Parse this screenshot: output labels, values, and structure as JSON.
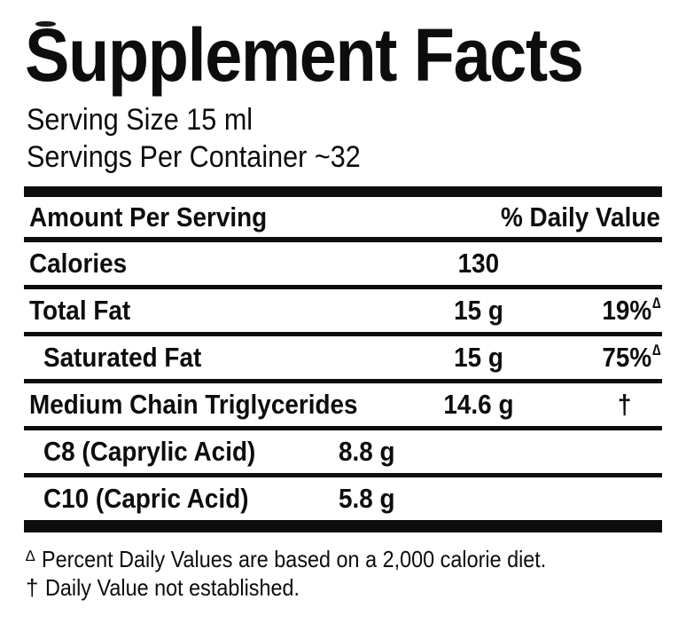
{
  "label": {
    "title": "Supplement Facts",
    "serving_size": "Serving Size 15 ml",
    "servings_per_container": "Servings Per Container ~32",
    "header": {
      "amount": "Amount Per Serving",
      "daily_value": "% Daily Value"
    },
    "rows": [
      {
        "name": "Calories",
        "amount": "130"
      },
      {
        "name": "Total Fat",
        "amount": "15 g",
        "dv": "19%",
        "dv_mark": "∆"
      },
      {
        "name": "Saturated Fat",
        "amount": "15 g",
        "dv": "75%",
        "dv_mark": "∆"
      },
      {
        "name": "Medium Chain Triglycerides",
        "amount": "14.6 g",
        "dv": "†"
      },
      {
        "name": "C8 (Caprylic Acid)",
        "amount": "8.8 g"
      },
      {
        "name": "C10 (Capric Acid)",
        "amount": "5.8 g"
      }
    ],
    "footnotes": [
      {
        "marker": "∆",
        "text": "Percent Daily Values are based on a 2,000 calorie diet."
      },
      {
        "marker": "†",
        "text": "Daily Value not established."
      }
    ],
    "colors": {
      "text": "#0d0d0d",
      "background": "#ffffff"
    }
  }
}
